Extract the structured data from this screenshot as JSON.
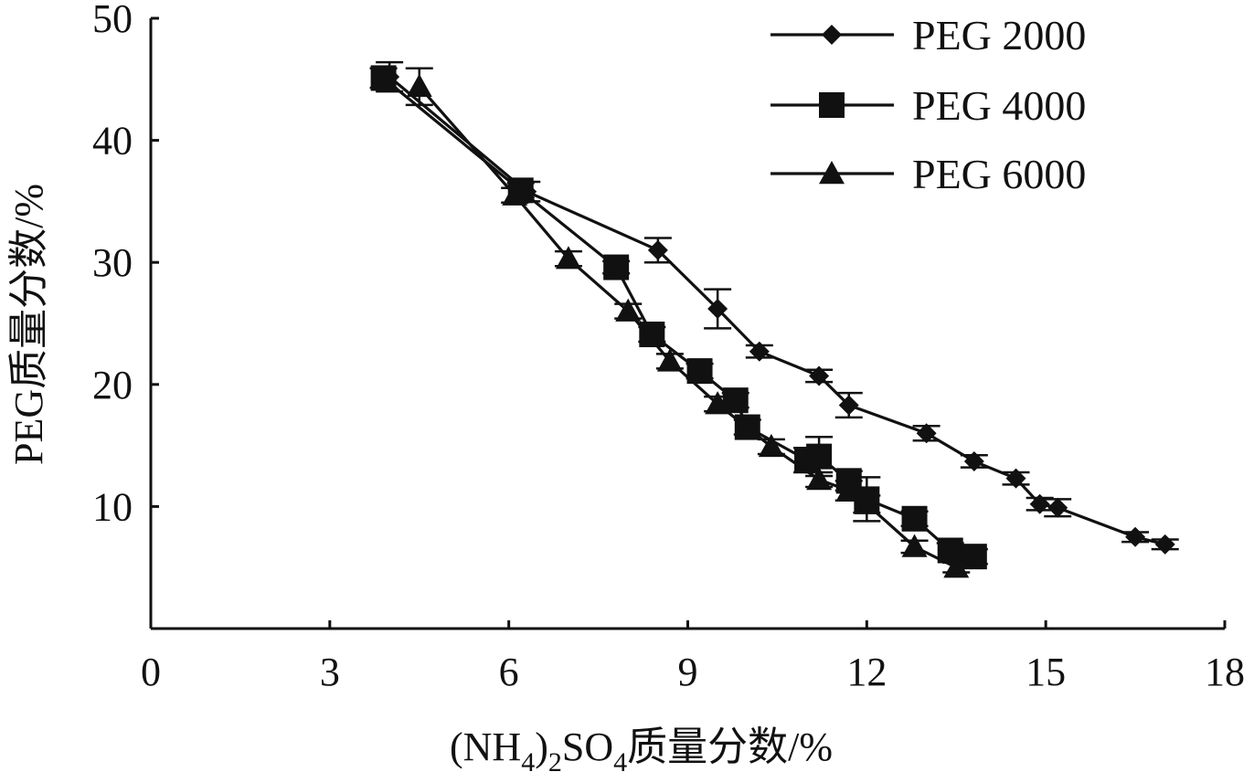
{
  "chart_data": {
    "type": "line",
    "xlabel_main": "(NH",
    "xlabel_sub1": "4",
    "xlabel_mid1": ")",
    "xlabel_sub2": "2",
    "xlabel_mid2": "SO",
    "xlabel_sub3": "4",
    "xlabel_tail": "质量分数/%",
    "ylabel": "PEG质量分数/%",
    "xlim": [
      0,
      18
    ],
    "ylim": [
      0,
      50
    ],
    "x_ticks": [
      "0",
      "3",
      "6",
      "9",
      "12",
      "15",
      "18"
    ],
    "y_ticks": [
      "10",
      "20",
      "30",
      "40",
      "50"
    ],
    "legend_position": "top-right",
    "series": [
      {
        "name": "PEG 2000",
        "marker": "diamond",
        "x": [
          4.0,
          6.3,
          8.5,
          9.5,
          10.2,
          11.2,
          11.7,
          13.0,
          13.8,
          14.5,
          14.9,
          15.2,
          16.5,
          17.0
        ],
        "y": [
          45.2,
          35.8,
          31.0,
          26.2,
          22.7,
          20.7,
          18.3,
          16.0,
          13.7,
          12.3,
          10.2,
          9.9,
          7.5,
          6.9
        ],
        "err": [
          1.2,
          0.8,
          1.0,
          1.6,
          0.5,
          0.5,
          1.0,
          0.6,
          0.5,
          0.5,
          0.5,
          0.7,
          0.4,
          0.4
        ]
      },
      {
        "name": "PEG 4000",
        "marker": "square",
        "x": [
          3.9,
          6.2,
          7.8,
          8.4,
          9.2,
          9.8,
          10.0,
          11.0,
          11.2,
          11.7,
          12.0,
          12.8,
          13.4,
          13.8
        ],
        "y": [
          45.1,
          35.9,
          29.6,
          24.1,
          21.1,
          18.7,
          16.5,
          13.8,
          14.1,
          12.1,
          10.6,
          9.0,
          6.4,
          5.9
        ],
        "err": [
          0.8,
          0.6,
          0.5,
          0.6,
          0.6,
          0.6,
          0.6,
          1.0,
          1.6,
          0.8,
          1.8,
          0.6,
          0.6,
          0.6
        ]
      },
      {
        "name": "PEG 6000",
        "marker": "triangle",
        "x": [
          4.5,
          6.1,
          7.0,
          8.0,
          8.7,
          9.5,
          10.4,
          11.2,
          11.7,
          12.0,
          12.8,
          13.5
        ],
        "y": [
          44.4,
          35.5,
          30.3,
          26.0,
          21.9,
          18.4,
          14.9,
          12.2,
          11.3,
          10.2,
          6.7,
          5.0
        ],
        "err": [
          1.5,
          0.6,
          0.6,
          0.6,
          0.6,
          0.6,
          0.6,
          0.6,
          0.8,
          0.7,
          0.5,
          0.4
        ]
      }
    ]
  }
}
